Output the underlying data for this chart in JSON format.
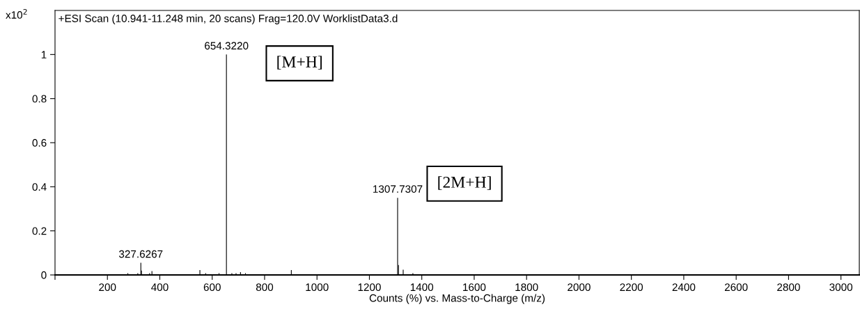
{
  "chart_data": {
    "type": "bar",
    "title": "+ESI Scan (10.941-11.248 min, 20 scans) Frag=120.0V WorklistData3.d",
    "xlabel": "Counts (%) vs. Mass-to-Charge (m/z)",
    "ylabel": "x10$^{2}$",
    "x": [
      278,
      316,
      327.6267,
      330,
      361,
      370,
      553,
      575,
      626,
      654.322,
      675,
      691,
      708,
      727,
      902,
      1307.7307,
      1311,
      1329,
      1366
    ],
    "values": [
      0.008,
      0.008,
      0.055,
      0.02,
      0.008,
      0.017,
      0.022,
      0.008,
      0.008,
      1.0,
      0.008,
      0.008,
      0.013,
      0.008,
      0.022,
      0.35,
      0.045,
      0.024,
      0.008
    ],
    "color": "#000000",
    "annotations": [
      {
        "text": "327.6267",
        "x": 327.6267,
        "y": 0.055
      },
      {
        "text": "654.3220",
        "x": 654.322,
        "y": 1.0
      },
      {
        "text": "1307.7307",
        "x": 1307.7307,
        "y": 0.35
      },
      "[M+H]",
      "[2M+H]"
    ],
    "xlim": [
      0,
      3070
    ],
    "xticks": [
      {
        "value": 0,
        "label": null
      },
      200,
      400,
      600,
      800,
      1000,
      1200,
      1400,
      1600,
      1800,
      2000,
      2200,
      2400,
      2600,
      2800,
      3000
    ],
    "ylim": [
      0,
      1.2
    ],
    "yticks": [
      0,
      0.2,
      0.4,
      0.6,
      0.8,
      1
    ],
    "grid": false,
    "legend": false
  }
}
